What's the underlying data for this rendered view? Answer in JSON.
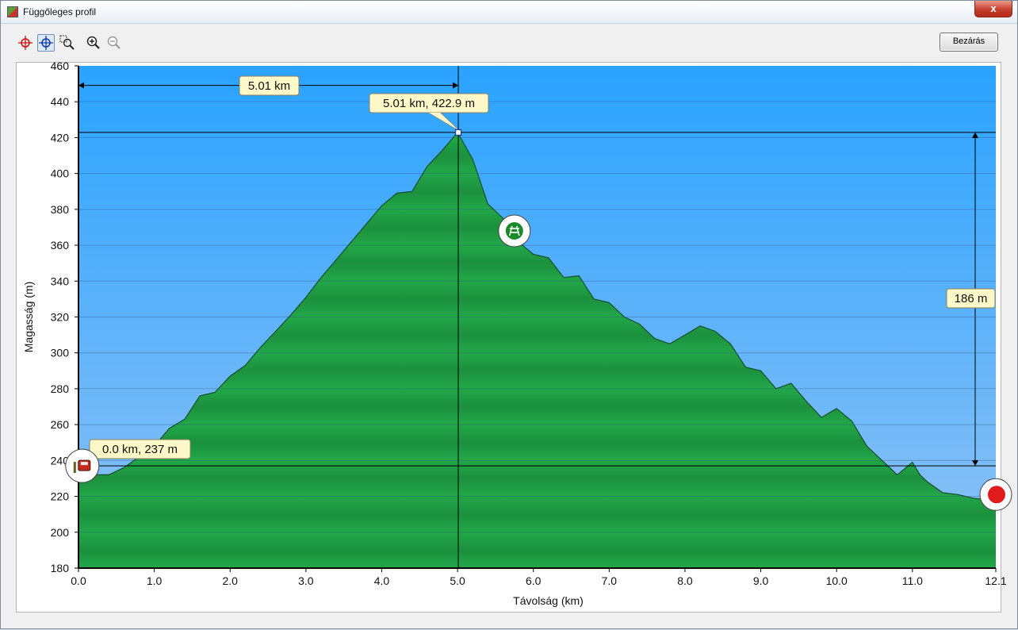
{
  "window": {
    "title": "Függőleges profil",
    "close_glyph": "x",
    "close_button_label": "Bezárás"
  },
  "toolbar": {
    "icons": [
      "crosshair-red-icon",
      "crosshair-blue-icon",
      "zoom-window-icon",
      "zoom-in-icon",
      "zoom-out-icon"
    ]
  },
  "colors": {
    "sky_top": "#2aa3ff",
    "sky_bottom": "#8fc2f5",
    "terrain": "#1f9a42",
    "terrain_dark": "#16803a",
    "callout_bg": "#fff8c8"
  },
  "chart_data": {
    "type": "area",
    "title": "",
    "xlabel": "Távolság   (km)",
    "ylabel": "Magasság (m)",
    "xlim": [
      0,
      12.1
    ],
    "ylim": [
      180,
      460
    ],
    "x_ticks": [
      "0.0",
      "1.0",
      "2.0",
      "3.0",
      "4.0",
      "5.0",
      "6.0",
      "7.0",
      "8.0",
      "9.0",
      "10.0",
      "11.0",
      "12.1"
    ],
    "x_tick_values": [
      0,
      1,
      2,
      3,
      4,
      5,
      6,
      7,
      8,
      9,
      10,
      11,
      12.1
    ],
    "y_ticks": [
      "180",
      "200",
      "220",
      "240",
      "260",
      "280",
      "300",
      "320",
      "340",
      "360",
      "380",
      "400",
      "420",
      "440",
      "460"
    ],
    "y_tick_values": [
      180,
      200,
      220,
      240,
      260,
      280,
      300,
      320,
      340,
      360,
      380,
      400,
      420,
      440,
      460
    ],
    "grid": true,
    "x": [
      0.0,
      0.2,
      0.4,
      0.6,
      0.8,
      1.0,
      1.2,
      1.4,
      1.6,
      1.8,
      2.0,
      2.2,
      2.4,
      2.6,
      2.8,
      3.0,
      3.2,
      3.4,
      3.6,
      3.8,
      4.0,
      4.2,
      4.4,
      4.6,
      4.8,
      5.0,
      5.2,
      5.4,
      5.6,
      5.8,
      6.0,
      6.2,
      6.4,
      6.6,
      6.8,
      7.0,
      7.2,
      7.4,
      7.6,
      7.8,
      8.0,
      8.2,
      8.4,
      8.6,
      8.8,
      9.0,
      9.2,
      9.4,
      9.6,
      9.8,
      10.0,
      10.2,
      10.4,
      10.6,
      10.8,
      11.0,
      11.1,
      11.2,
      11.4,
      11.6,
      11.8,
      12.0,
      12.1
    ],
    "y": [
      237,
      232,
      232,
      236,
      242,
      248,
      258,
      263,
      276,
      278,
      287,
      293,
      303,
      312,
      321,
      331,
      342,
      352,
      362,
      372,
      382,
      389,
      390,
      404,
      413,
      422.9,
      408,
      383,
      375,
      362,
      355,
      353,
      342,
      343,
      330,
      328,
      320,
      316,
      308,
      305,
      310,
      315,
      312,
      305,
      292,
      290,
      280,
      283,
      273,
      264,
      269,
      262,
      248,
      240,
      232,
      239,
      232,
      228,
      222,
      221,
      219,
      218,
      218
    ],
    "annotations": [
      {
        "type": "distance",
        "label": "5.01 km",
        "from_x": 0,
        "to_x": 5.01,
        "y": 450
      },
      {
        "type": "point",
        "label": "5.01 km, 422.9 m",
        "x": 5.01,
        "y": 422.9
      },
      {
        "type": "point",
        "label": "0.0 km, 237 m",
        "x": 0,
        "y": 237
      },
      {
        "type": "height",
        "label": "186 m",
        "x": 12.1,
        "from_y": 237,
        "to_y": 422.9
      }
    ],
    "markers": [
      {
        "icon": "picnic-table-icon",
        "x": 5.75,
        "y": 368
      },
      {
        "icon": "car-icon",
        "x": 0.05,
        "y": 237
      },
      {
        "icon": "stop-icon",
        "x": 12.1,
        "y": 221
      }
    ]
  }
}
